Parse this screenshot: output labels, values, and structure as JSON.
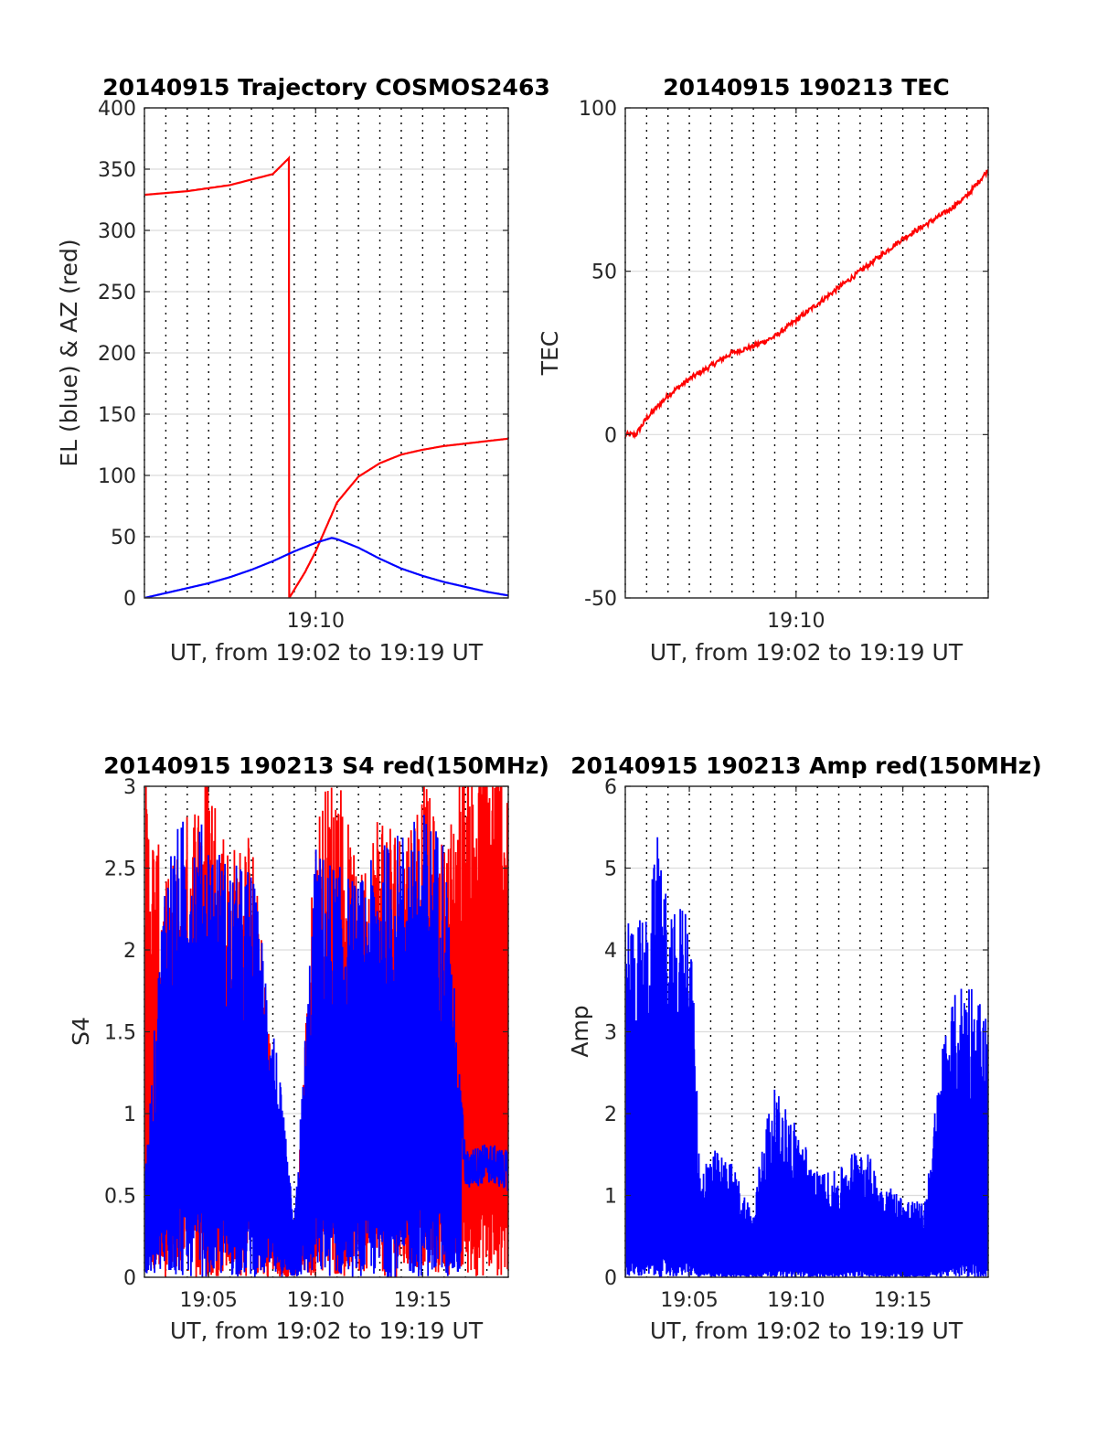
{
  "chart_data": [
    {
      "type": "line",
      "title": "20140915 Trajectory COSMOS2463",
      "xlabel": "UT, from 19:02 to 19:19 UT",
      "ylabel": "EL (blue) & AZ (red)",
      "xlim": [
        "19:02",
        "19:19"
      ],
      "ylim": [
        0,
        400
      ],
      "xticks": [
        "19:10"
      ],
      "yticks": [
        0,
        50,
        100,
        150,
        200,
        250,
        300,
        350,
        400
      ],
      "grid": true,
      "series": [
        {
          "color": "#ff0000",
          "x": [
            "19:02",
            "19:04",
            "19:06",
            "19:08",
            "19:08:45",
            "19:08:46",
            "19:09:30",
            "19:10",
            "19:10:30",
            "19:11",
            "19:12",
            "19:13",
            "19:14",
            "19:15",
            "19:16",
            "19:17",
            "19:18",
            "19:19"
          ],
          "values": [
            329,
            332,
            337,
            346,
            359,
            0,
            21,
            38,
            58,
            78,
            99,
            110,
            117,
            121,
            124,
            126,
            128,
            130
          ]
        },
        {
          "color": "#0000ff",
          "x": [
            "19:02",
            "19:03",
            "19:04",
            "19:05",
            "19:06",
            "19:07",
            "19:08",
            "19:09",
            "19:10",
            "19:10:45",
            "19:11",
            "19:12",
            "19:13",
            "19:14",
            "19:15",
            "19:16",
            "19:17",
            "19:18",
            "19:19"
          ],
          "values": [
            0,
            4,
            8,
            12,
            17,
            23,
            30,
            38,
            45,
            49,
            48,
            41,
            32,
            24,
            18,
            13,
            9,
            5,
            2
          ]
        }
      ]
    },
    {
      "type": "line",
      "title": "20140915 190213 TEC",
      "xlabel": "UT, from 19:02 to 19:19 UT",
      "ylabel": "TEC",
      "xlim": [
        "19:02",
        "19:19"
      ],
      "ylim": [
        -50,
        100
      ],
      "xticks": [
        "19:10"
      ],
      "yticks": [
        -50,
        0,
        50,
        100
      ],
      "grid": true,
      "series": [
        {
          "color": "#ff0000",
          "x": [
            "19:02",
            "19:02:30",
            "19:03",
            "19:04",
            "19:05",
            "19:06",
            "19:07",
            "19:08",
            "19:09",
            "19:10",
            "19:11",
            "19:12",
            "19:13",
            "19:14",
            "19:15",
            "19:16",
            "19:17",
            "19:18",
            "19:19"
          ],
          "values": [
            0,
            0,
            5,
            12,
            17,
            21,
            25,
            27,
            30,
            35,
            40,
            45,
            50,
            55,
            60,
            64,
            68,
            73,
            81
          ]
        }
      ]
    },
    {
      "type": "line",
      "title": "20140915 190213 S4 red(150MHz)",
      "xlabel": "UT, from 19:02 to 19:19 UT",
      "ylabel": "S4",
      "xlim": [
        "19:02",
        "19:19"
      ],
      "ylim": [
        0,
        3
      ],
      "xticks": [
        "19:05",
        "19:10",
        "19:15"
      ],
      "yticks": [
        0,
        0.5,
        1,
        1.5,
        2,
        2.5,
        3
      ],
      "grid": true,
      "series": [
        {
          "color": "#ff0000",
          "x": [
            "19:02",
            "19:03",
            "19:04",
            "19:05",
            "19:06",
            "19:07",
            "19:08",
            "19:09",
            "19:10",
            "19:11",
            "19:12",
            "19:13",
            "19:14",
            "19:15",
            "19:16",
            "19:17",
            "19:18",
            "19:19"
          ],
          "values": [
            2.8,
            2.2,
            2.6,
            2.9,
            2.4,
            2.5,
            1.2,
            0.1,
            2.6,
            2.9,
            2.2,
            2.7,
            2.5,
            2.8,
            2.4,
            3.0,
            3.0,
            3.0
          ]
        },
        {
          "color": "#0000ff",
          "x": [
            "19:02",
            "19:03",
            "19:04",
            "19:05",
            "19:06",
            "19:07",
            "19:08",
            "19:09",
            "19:10",
            "19:11",
            "19:12",
            "19:13",
            "19:14",
            "19:15",
            "19:16",
            "19:17",
            "19:18",
            "19:19"
          ],
          "values": [
            0.5,
            2.4,
            2.6,
            2.5,
            2.3,
            2.3,
            1.5,
            0.3,
            2.4,
            2.3,
            2.2,
            2.4,
            2.5,
            2.6,
            2.5,
            0.65,
            0.7,
            0.65
          ]
        }
      ]
    },
    {
      "type": "line",
      "title": "20140915 190213 Amp red(150MHz)",
      "xlabel": "UT, from 19:02 to 19:19 UT",
      "ylabel": "Amp",
      "xlim": [
        "19:02",
        "19:19"
      ],
      "ylim": [
        0,
        6
      ],
      "xticks": [
        "19:05",
        "19:10",
        "19:15"
      ],
      "yticks": [
        0,
        1,
        2,
        3,
        4,
        5,
        6
      ],
      "grid": true,
      "series": [
        {
          "color": "#0000ff",
          "x": [
            "19:02",
            "19:03",
            "19:03:40",
            "19:04",
            "19:05",
            "19:05:30",
            "19:06",
            "19:07",
            "19:08",
            "19:08:30",
            "19:09",
            "19:10",
            "19:11",
            "19:12",
            "19:13",
            "19:14",
            "19:15",
            "19:16",
            "19:17",
            "19:18",
            "19:19"
          ],
          "values": [
            4.5,
            4.4,
            5.7,
            4.3,
            4.8,
            1.3,
            1.6,
            1.4,
            0.8,
            1.9,
            2.3,
            1.9,
            1.3,
            1.3,
            1.7,
            1.2,
            1.0,
            0.9,
            3.2,
            3.8,
            3.2
          ]
        }
      ]
    }
  ]
}
